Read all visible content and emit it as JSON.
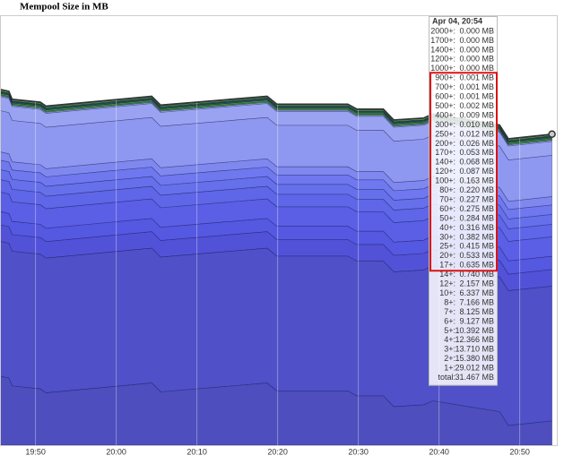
{
  "chart_data": {
    "type": "area",
    "title": "Mempool Size in MB",
    "x": [
      1185.6,
      1186.7,
      1187.1,
      1190.6,
      1191.3,
      1204.4,
      1205.5,
      1218.7,
      1219.9,
      1228.7,
      1229.8,
      1233.1,
      1234.4,
      1238.1,
      1239.2,
      1247.5,
      1248.6,
      1254
    ],
    "xlim": [
      1185.6,
      1254.6
    ],
    "xticks": [
      {
        "value": 1190,
        "label": "19:50"
      },
      {
        "value": 1200,
        "label": "20:00"
      },
      {
        "value": 1210,
        "label": "20:10"
      },
      {
        "value": 1220,
        "label": "20:20"
      },
      {
        "value": 1230,
        "label": "20:30"
      },
      {
        "value": 1240,
        "label": "20:40"
      },
      {
        "value": 1250,
        "label": "20:50"
      }
    ],
    "ylim": [
      0,
      43.4
    ],
    "grid": true,
    "total": {
      "color": "#333333",
      "values": [
        36.0,
        35.8,
        35.0,
        34.7,
        34.3,
        35.3,
        34.4,
        35.3,
        34.5,
        34.5,
        34.0,
        34.0,
        32.9,
        33.1,
        33.5,
        32.4,
        31.0,
        31.467
      ]
    },
    "tooltip": {
      "title": "Apr 04, 20:54",
      "x": 1254,
      "categories": [
        "2000+:",
        "1700+:",
        "1400+:",
        "1200+:",
        "1000+:",
        "900+:",
        "700+:",
        "600+:",
        "500+:",
        "400+:",
        "300+:",
        "250+:",
        "200+:",
        "170+:",
        "140+:",
        "120+:",
        "100+:",
        "80+:",
        "70+:",
        "60+:",
        "50+:",
        "40+:",
        "30+:",
        "25+:",
        "20+:",
        "17+:",
        "14+:",
        "12+:",
        "10+:",
        "8+:",
        "7+:",
        "6+:",
        "5+:",
        "4+:",
        "3+:",
        "2+:",
        "1+:",
        "total:"
      ],
      "values": [
        0,
        0,
        0,
        0,
        0,
        0.001,
        0.001,
        0.001,
        0.002,
        0.009,
        0.01,
        0.012,
        0.026,
        0.053,
        0.068,
        0.087,
        0.163,
        0.22,
        0.227,
        0.275,
        0.284,
        0.316,
        0.382,
        0.415,
        0.533,
        0.635,
        0.74,
        2.157,
        6.337,
        7.166,
        8.125,
        9.127,
        10.392,
        12.366,
        13.71,
        15.38,
        29.012,
        31.467
      ],
      "value_labels": [
        "0.000 MB",
        "0.000 MB",
        "0.000 MB",
        "0.000 MB",
        "0.000 MB",
        "0.001 MB",
        "0.001 MB",
        "0.001 MB",
        "0.002 MB",
        "0.009 MB",
        "0.010 MB",
        "0.012 MB",
        "0.026 MB",
        "0.053 MB",
        "0.068 MB",
        "0.087 MB",
        "0.163 MB",
        "0.220 MB",
        "0.227 MB",
        "0.275 MB",
        "0.284 MB",
        "0.316 MB",
        "0.382 MB",
        "0.415 MB",
        "0.533 MB",
        "0.635 MB",
        "0.740 MB",
        "2.157 MB",
        "6.337 MB",
        "7.166 MB",
        "8.125 MB",
        "9.127 MB",
        "10.392 MB",
        "12.366 MB",
        "13.710 MB",
        "15.380 MB",
        "29.012 MB",
        "31.467 MB"
      ],
      "colors": [
        "#e8a33a",
        "#e8a33a",
        "#e8a33a",
        "#e8a33a",
        "#e8a33a",
        "#f0d03a",
        "#f0d03a",
        "#f0d03a",
        "#f0d03a",
        "#f0d03a",
        "#f0d03a",
        "#7ee05c",
        "#7ee05c",
        "#7ee05c",
        "#7ee05c",
        "#7ee05c",
        "#7ee05c",
        "#5cc94a",
        "#5cc94a",
        "#5cc94a",
        "#5cc94a",
        "#4aa545",
        "#4aa545",
        "#4aa545",
        "#4aa545",
        "#4aa545",
        "#aab4f2",
        "#9aa3f2",
        "#8f98f0",
        "#7f88ee",
        "#6f78ee",
        "#6670ea",
        "#5f66e8",
        "#5a5fe6",
        "#5558e0",
        "#5252d8",
        "#5050c8",
        "#4e4ebe"
      ]
    }
  }
}
